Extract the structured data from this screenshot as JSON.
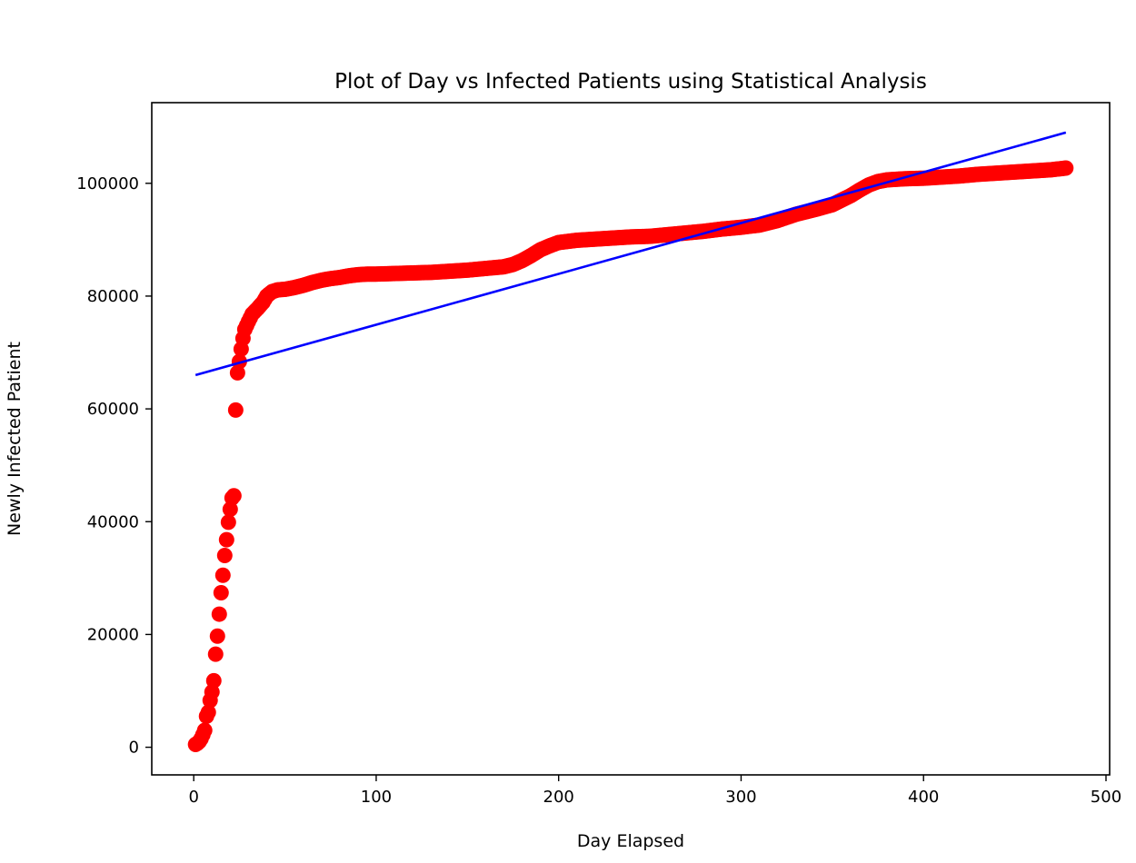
{
  "chart_data": {
    "type": "scatter",
    "title": "Plot of Day vs Infected Patients using Statistical Analysis",
    "xlabel": "Day Elapsed",
    "ylabel": "Newly Infected Patient",
    "xlim": [
      -23,
      502
    ],
    "ylim": [
      -4900,
      114300
    ],
    "xticks": [
      0,
      100,
      200,
      300,
      400,
      500
    ],
    "yticks": [
      0,
      20000,
      40000,
      60000,
      80000,
      100000
    ],
    "grid": false,
    "colors": {
      "points": "#ff0000",
      "fit": "#0000ff",
      "axes": "#000000"
    },
    "series": [
      {
        "kind": "scatter",
        "x": [
          1,
          2,
          3,
          4,
          5,
          6,
          7,
          8,
          9,
          10,
          11,
          12,
          13,
          14,
          15,
          16,
          17,
          18,
          19,
          20,
          21,
          22,
          23,
          24,
          25,
          26,
          27,
          28,
          30,
          32,
          35,
          38,
          40,
          43,
          46,
          50,
          55,
          60,
          65,
          70,
          75,
          80,
          85,
          90,
          95,
          100,
          110,
          120,
          130,
          140,
          150,
          160,
          170,
          175,
          180,
          185,
          190,
          195,
          200,
          210,
          220,
          230,
          240,
          250,
          260,
          270,
          280,
          290,
          300,
          310,
          320,
          330,
          340,
          350,
          355,
          360,
          365,
          370,
          375,
          380,
          390,
          400,
          410,
          420,
          430,
          440,
          450,
          460,
          470,
          478
        ],
        "y": [
          500,
          700,
          1000,
          1500,
          2200,
          3000,
          5500,
          6200,
          8300,
          9800,
          11800,
          16500,
          19700,
          23600,
          27400,
          30500,
          34000,
          36800,
          39900,
          42200,
          44200,
          44600,
          59800,
          66400,
          68400,
          70600,
          72500,
          74100,
          75500,
          76800,
          77800,
          78900,
          80000,
          80800,
          81100,
          81200,
          81500,
          81900,
          82400,
          82800,
          83100,
          83300,
          83600,
          83800,
          83900,
          83900,
          84000,
          84100,
          84200,
          84400,
          84600,
          84900,
          85200,
          85600,
          86300,
          87200,
          88200,
          88900,
          89500,
          89900,
          90100,
          90300,
          90500,
          90600,
          90900,
          91200,
          91500,
          91900,
          92200,
          92600,
          93400,
          94500,
          95300,
          96200,
          97000,
          97800,
          98800,
          99700,
          100300,
          100600,
          100800,
          100900,
          101100,
          101300,
          101600,
          101800,
          102000,
          102200,
          102400,
          102700
        ]
      },
      {
        "kind": "line",
        "x": [
          1,
          478
        ],
        "y": [
          66000,
          109000
        ]
      }
    ]
  }
}
